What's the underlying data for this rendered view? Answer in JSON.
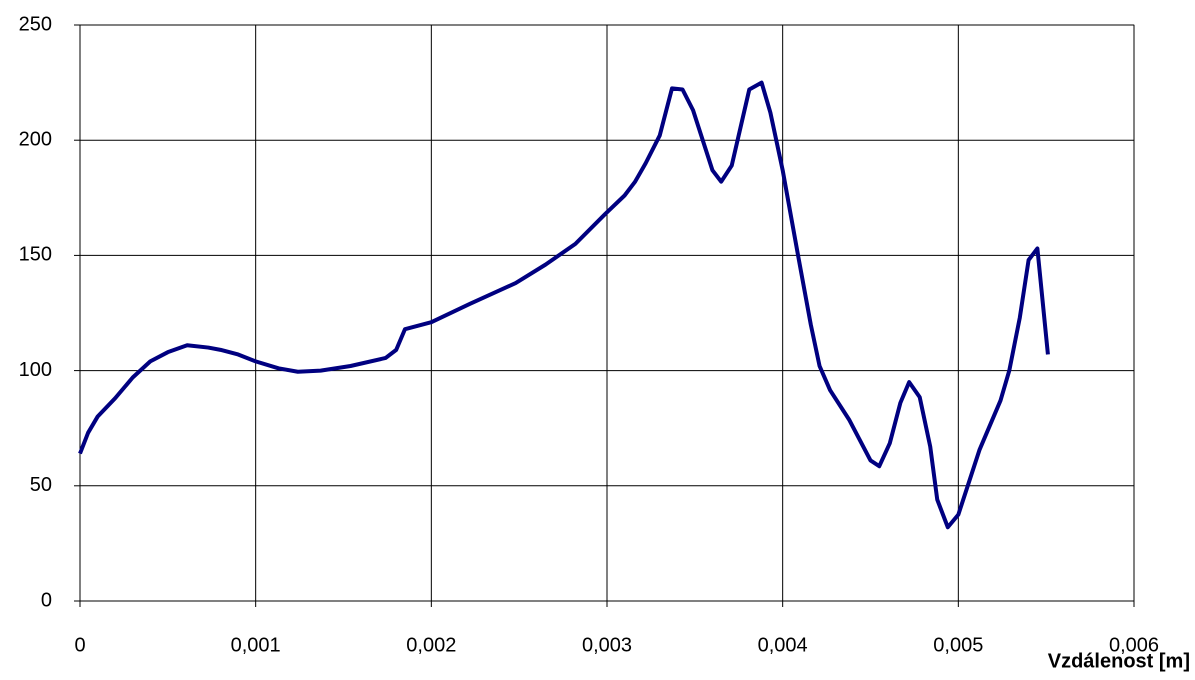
{
  "chart_data": {
    "type": "line",
    "xlabel": "Vzdálenost [m]",
    "x": [
      0,
      4.6e-05,
      0.0001,
      0.0002,
      0.0003,
      0.0004,
      0.0005,
      0.00061,
      0.00073,
      0.0008,
      0.0009,
      0.001,
      0.00113,
      0.00124,
      0.00137,
      0.00154,
      0.00174,
      0.0018,
      0.00185,
      0.002,
      0.00222,
      0.00248,
      0.00265,
      0.00282,
      0.00299,
      0.0031,
      0.00316,
      0.00322,
      0.0033,
      0.00337,
      0.00343,
      0.00349,
      0.0036,
      0.00365,
      0.00371,
      0.00381,
      0.00388,
      0.00393,
      0.004,
      0.00409,
      0.00416,
      0.00421,
      0.00427,
      0.00438,
      0.0045,
      0.00455,
      0.00461,
      0.00467,
      0.00472,
      0.00478,
      0.00484,
      0.00488,
      0.00494,
      0.005,
      0.00512,
      0.00524,
      0.00529,
      0.00535,
      0.0054,
      0.00545,
      0.00551
    ],
    "series": [
      {
        "color": "#000080",
        "values": [
          64,
          73,
          80,
          88,
          97,
          104,
          108,
          111,
          110,
          109,
          107,
          104,
          101,
          99.5,
          100,
          102,
          105.5,
          109,
          118,
          121,
          129,
          138,
          146,
          155,
          168,
          176,
          182,
          190,
          202,
          222.5,
          222,
          213,
          187,
          182,
          189,
          222,
          225,
          212,
          187,
          149,
          120,
          102,
          91.5,
          78.5,
          61,
          58.5,
          68.5,
          86,
          95,
          88.5,
          67,
          44,
          32,
          37.5,
          65.5,
          87,
          100,
          123,
          148,
          153,
          107
        ]
      }
    ],
    "xlim": [
      0,
      0.006
    ],
    "xticks": [
      0,
      {
        "value": 0.001,
        "label": "0,001"
      },
      {
        "value": 0.002,
        "label": "0,002"
      },
      {
        "value": 0.003,
        "label": "0,003"
      },
      {
        "value": 0.004,
        "label": "0,004"
      },
      {
        "value": 0.005,
        "label": "0,005"
      },
      {
        "value": 0.006,
        "label": "0,006"
      }
    ],
    "ylim": [
      0,
      250
    ],
    "yticks": [
      0,
      50,
      100,
      150,
      200,
      250
    ],
    "grid": true
  }
}
